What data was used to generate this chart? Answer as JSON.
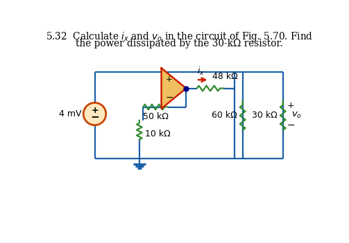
{
  "bg_color": "#ffffff",
  "wire_color": "#1a5fa8",
  "green": "#2e8b2e",
  "opamp_fill": "#f0c060",
  "opamp_edge": "#cc2200",
  "src_edge": "#cc4400",
  "src_fill": "#fde8c0",
  "arrow_color": "#cc2200",
  "dot_color": "#00008b",
  "title1": "5.32  Calculate $i_x$ and $v_o$ in the circuit of Fig. 5.70. Find",
  "title2": "the power dissipated by the 30-kΩ resistor.",
  "lbl_48k": "48 kΩ",
  "lbl_50k": "50 kΩ",
  "lbl_60k": "60 kΩ",
  "lbl_30k": "30 kΩ",
  "lbl_10k": "10 kΩ",
  "lbl_4mV": "4 mV",
  "lbl_ix": "$i_x$",
  "lbl_vo": "$v_o$",
  "figw": 5.03,
  "figh": 3.51,
  "dpi": 100
}
